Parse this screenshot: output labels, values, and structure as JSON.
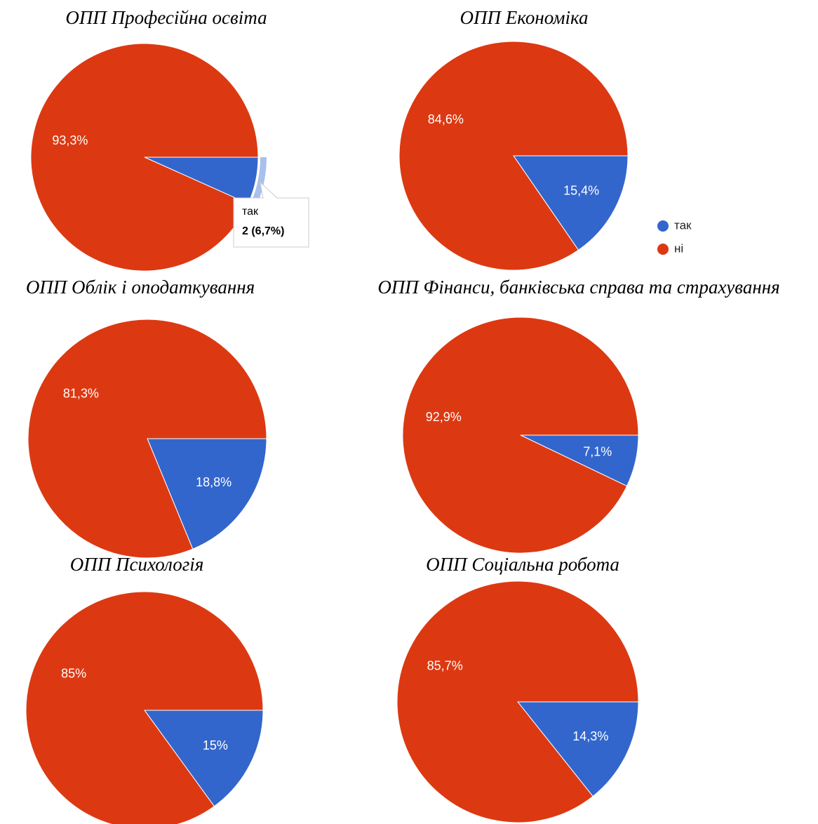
{
  "chart_data": [
    {
      "type": "pie",
      "title": "ОПП Професійна освіта",
      "categories": [
        "так",
        "ні"
      ],
      "values": [
        6.7,
        93.3
      ],
      "value_labels": [
        null,
        "93,3%"
      ],
      "colors": [
        "#3366cc",
        "#dc3912"
      ],
      "tooltip": {
        "category": "так",
        "text": "2 (6,7%)"
      }
    },
    {
      "type": "pie",
      "title": "ОПП Економіка",
      "categories": [
        "так",
        "ні"
      ],
      "values": [
        15.4,
        84.6
      ],
      "value_labels": [
        "15,4%",
        "84,6%"
      ],
      "colors": [
        "#3366cc",
        "#dc3912"
      ],
      "legend": "right"
    },
    {
      "type": "pie",
      "title": "ОПП Облік і оподаткування",
      "categories": [
        "так",
        "ні"
      ],
      "values": [
        18.8,
        81.3
      ],
      "value_labels": [
        "18,8%",
        "81,3%"
      ],
      "colors": [
        "#3366cc",
        "#dc3912"
      ]
    },
    {
      "type": "pie",
      "title": "ОПП Фінанси, банківська справа та страхування",
      "categories": [
        "так",
        "ні"
      ],
      "values": [
        7.1,
        92.9
      ],
      "value_labels": [
        "7,1%",
        "92,9%"
      ],
      "colors": [
        "#3366cc",
        "#dc3912"
      ]
    },
    {
      "type": "pie",
      "title": "ОПП Психологія",
      "categories": [
        "так",
        "ні"
      ],
      "values": [
        15,
        85
      ],
      "value_labels": [
        "15%",
        "85%"
      ],
      "colors": [
        "#3366cc",
        "#dc3912"
      ]
    },
    {
      "type": "pie",
      "title": "ОПП Соціальна робота",
      "categories": [
        "так",
        "ні"
      ],
      "values": [
        14.3,
        85.7
      ],
      "value_labels": [
        "14,3%",
        "85,7%"
      ],
      "colors": [
        "#3366cc",
        "#dc3912"
      ]
    }
  ]
}
